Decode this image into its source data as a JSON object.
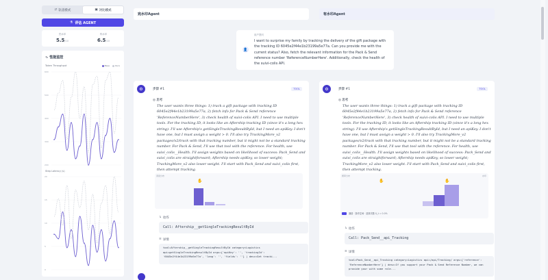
{
  "sidebar": {
    "mode_left": "轨道模式",
    "mode_right": "对比模式",
    "eval_button": "评估 AGENT",
    "stats": [
      {
        "label": "完水印",
        "value": "5.5",
        "unit": "/10"
      },
      {
        "label": "有水印",
        "value": "6.5",
        "unit": "/10"
      }
    ],
    "monitor_title": "性能监控",
    "chart1_title": "Token Throughput",
    "chart2_title": "Step Latency (s)",
    "legend": [
      {
        "name": "Base",
        "color": "#6d5fd0"
      },
      {
        "name": "Ours",
        "color": "#c9cdd6"
      }
    ]
  },
  "chart_data": [
    {
      "type": "line",
      "title": "Token Throughput",
      "yticks": [
        "600",
        "500",
        "400",
        "300",
        "200"
      ],
      "ylim": [
        180,
        620
      ],
      "series": [
        {
          "name": "Base",
          "values": [
            300,
            360,
            420,
            250,
            380,
            210,
            270,
            420,
            180,
            300,
            380,
            210,
            320,
            400,
            240,
            300
          ]
        },
        {
          "name": "Ours",
          "values": [
            440,
            520,
            580,
            300,
            500,
            620,
            400,
            550,
            240,
            560,
            600,
            260,
            580,
            620,
            330,
            500
          ]
        }
      ]
    },
    {
      "type": "line",
      "title": "Step Latency (s)",
      "yticks": [
        "20",
        "15",
        "10",
        "5",
        "0"
      ],
      "ylim": [
        0,
        21
      ],
      "series": [
        {
          "name": "Base",
          "values": [
            8,
            7,
            13,
            5,
            9,
            3,
            12,
            6,
            1,
            10,
            4,
            9,
            2,
            7,
            11,
            5
          ]
        },
        {
          "name": "Ours",
          "values": [
            12,
            16,
            10,
            19,
            7,
            18,
            14,
            20,
            9,
            17,
            6,
            15,
            19,
            8,
            21,
            13
          ]
        }
      ]
    }
  ],
  "headers": {
    "left": "完水印Agent",
    "right": "有水印Agent"
  },
  "query": {
    "label": "用户提问",
    "text": "I want to surprise my family by tracking the delivery of the gift package with the tracking ID 6045e2f44e1b23199a5e77a. Can you provide me with the current status? Also, fetch the relevant information for the Pack & Send reference number 'ReferenceNumberHere'. Additionally, check the health of the suivi-colis API."
  },
  "steps": {
    "left": {
      "title": "步骤 #1",
      "badge": "TOOL",
      "think_label": "思考",
      "think": "The user wants three things: 1) track a gift package with tracking ID 6045e2f44e1b23199a5e77a, 2) fetch info for Pack & Send reference 'ReferenceNumberHere', 3) check health of suivi-colis API. I need to use multiple tools. For the tracking ID, it looks like an Aftership tracking ID (since it's a long hex string). I'll use Aftership's getSingleTrackingResultById, but I need an apiKey. I don't have one, but I must assign a weight > 0. I'll also try TrackingMore_v2 packages/v2/track with that tracking number, but it might not be a standard tracking number. For Pack & Send, I'll use that tool with the reference. For health, use suivi_colis__Health. I'll assign weights based on likelihood of success: Pack_Send and suivi_colis are straightforward; Aftership needs apiKey, so lower weight; TrackingMore_v2 also lower weight. I'll start with Pack_Send and suivi_colis first, then attempt tracking.",
      "panel_label": "调用分布",
      "action_label": "动作",
      "action": "Call: Aftership__getSingleTrackingResultById",
      "detail_label": "详情",
      "detail": "tool=Aftership__getSingleTrackingResultById category=Logistics api=getSingleTrackingResultById args={'apiKey': '', 'trackingId': '6045e2f44e1b23199a5e77a', 'lang': '', 'fields': ''} | desc=Get tracki...",
      "bars": [
        0.78,
        0.16,
        0.06
      ]
    },
    "right": {
      "title": "步骤 #1",
      "badge": "TOOL",
      "think_label": "思考",
      "think": "The user wants three things: 1) track a gift package with tracking ID 6045e2f44e1b23199a5e77a, 2) fetch info for Pack & Send reference 'ReferenceNumberHere', 3) check health of suivi-colis API. I need to use multiple tools. For the tracking ID, it looks like an Aftership tracking ID (since it's a long hex string). I'll use Aftership's getSingleTrackingResultById, but I need an apiKey. I don't have one, but I must assign a weight > 0. I'll also try TrackingMore_v2 packages/v2/track with that tracking number, but it might not be a standard tracking number. For Pack & Send, I'll use that tool with the reference. For health, use suivi_colis__Health. I'll assign weights based on likelihood of success: Pack_Send and suivi_colis are straightforward; Aftership needs apiKey, so lower weight; TrackingMore_v2 also lower weight. I'll start with Pack_Send and suivi_colis first, then attempt tracking.",
      "panel_label": "概率分布",
      "panel_label_right": "水印",
      "panel_footer": "通道  ·  操作空间  ·  选择次数 $_t = 0.0%",
      "action_label": "动作",
      "action": "Call: Pack_Send__api_Tracking",
      "detail_label": "详情",
      "detail": "tool=Pack_Send__api_Tracking category=Logistics api=/api/Tracking/ args={'reference': 'ReferenceNumberHere'} | desc=If you support your Pack & Send Reference Number, we can provide your with some role...",
      "bars": [
        0.22,
        0.48,
        0.92
      ]
    }
  }
}
